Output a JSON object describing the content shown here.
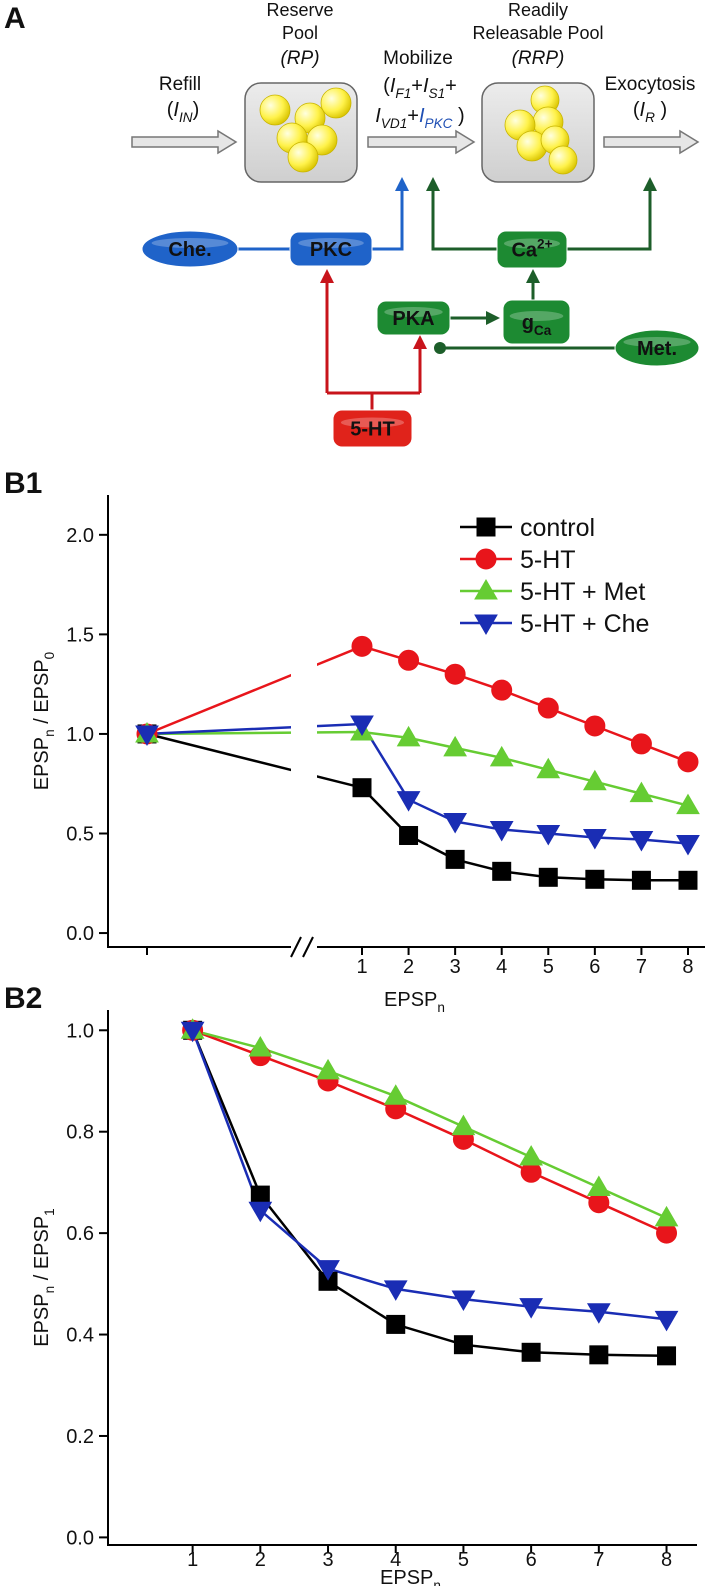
{
  "diagram": {
    "panel_label": "A",
    "refill": {
      "label": "Refill",
      "rate": [
        {
          "text": "("
        },
        {
          "text": "I",
          "italic": true
        },
        {
          "text": "IN",
          "sub": true,
          "italic": true
        },
        {
          "text": ")"
        }
      ]
    },
    "reserve_pool": {
      "label": [
        "Reserve",
        "Pool"
      ],
      "abbr": "(RP)"
    },
    "mobilize": {
      "label": "Mobilize",
      "rate": [
        [
          {
            "text": "("
          },
          {
            "text": "I",
            "italic": true
          },
          {
            "text": "F1",
            "sub": true,
            "italic": true
          },
          {
            "text": "+"
          },
          {
            "text": "I",
            "italic": true
          },
          {
            "text": "S1",
            "sub": true,
            "italic": true
          },
          {
            "text": "+"
          }
        ],
        [
          {
            "text": "I",
            "italic": true
          },
          {
            "text": "VD1",
            "sub": true,
            "italic": true
          },
          {
            "text": "+"
          },
          {
            "text": "I",
            "italic": true,
            "color": "#1f4fb4"
          },
          {
            "text": "PKC",
            "sub": true,
            "italic": true,
            "color": "#1f4fb4"
          },
          {
            "text": " )"
          }
        ]
      ]
    },
    "readily_releasable_pool": {
      "label": [
        "Readily",
        "Releasable Pool"
      ],
      "abbr": "(RRP)"
    },
    "exocytosis": {
      "label": "Exocytosis",
      "rate": [
        {
          "text": "("
        },
        {
          "text": "I",
          "italic": true
        },
        {
          "text": "R",
          "sub": true,
          "italic": true
        },
        {
          "text": " )"
        }
      ]
    },
    "nodes": {
      "che": {
        "label": [
          {
            "text": "Che."
          }
        ],
        "color": "#1f63c9"
      },
      "pkc": {
        "label": [
          {
            "text": "PKC"
          }
        ],
        "color": "#1f63c9"
      },
      "ca": {
        "label": [
          {
            "text": "Ca"
          },
          {
            "text": "2+",
            "sup": true
          }
        ],
        "color": "#1d8a32"
      },
      "pka": {
        "label": [
          {
            "text": "PKA"
          }
        ],
        "color": "#1d8a32"
      },
      "gca": {
        "label": [
          {
            "text": "g"
          },
          {
            "text": "Ca",
            "sub": true
          }
        ],
        "color": "#1d8a32"
      },
      "met": {
        "label": [
          {
            "text": "Met."
          }
        ],
        "color": "#1d8a32"
      },
      "ht": {
        "label": [
          {
            "text": "5-HT"
          }
        ],
        "color": "#e0231b"
      }
    }
  },
  "chart_data": [
    {
      "type": "line",
      "panel_label": "B1",
      "x_label": [
        {
          "text": "EPSP"
        },
        {
          "text": "n",
          "sub": true
        }
      ],
      "y_label": [
        {
          "text": "EPSP"
        },
        {
          "text": "n",
          "sub": true
        },
        {
          "text": " / EPSP"
        },
        {
          "text": "0",
          "sub": true
        }
      ],
      "categories": [
        null,
        "1",
        "2",
        "3",
        "4",
        "5",
        "6",
        "7",
        "8"
      ],
      "x_break": true,
      "ylim": [
        -0.07,
        2.2
      ],
      "yticks": [
        {
          "value": 0,
          "label": "0.0"
        },
        0.5,
        {
          "value": 1,
          "label": "1.0"
        },
        1.5,
        {
          "value": 2,
          "label": "2.0"
        }
      ],
      "legend": "upper right",
      "series": [
        {
          "name": "control",
          "color": "#000000",
          "marker": "square",
          "values": [
            1.0,
            0.73,
            0.49,
            0.37,
            0.31,
            0.28,
            0.27,
            0.265,
            0.265
          ]
        },
        {
          "name": "5-HT",
          "color": "#e8151b",
          "marker": "circle",
          "values": [
            1.0,
            1.44,
            1.37,
            1.3,
            1.22,
            1.13,
            1.04,
            0.95,
            0.86
          ]
        },
        {
          "name": "5-HT + Met",
          "color": "#66cc33",
          "marker": "triangle-up",
          "values": [
            1.0,
            1.01,
            0.98,
            0.93,
            0.88,
            0.82,
            0.76,
            0.7,
            0.64
          ]
        },
        {
          "name": "5-HT + Che",
          "color": "#1a2db4",
          "marker": "triangle-down",
          "values": [
            1.0,
            1.05,
            0.67,
            0.56,
            0.52,
            0.5,
            0.48,
            0.47,
            0.45
          ]
        }
      ]
    },
    {
      "type": "line",
      "panel_label": "B2",
      "x_label": [
        {
          "text": "EPSP"
        },
        {
          "text": "n",
          "sub": true
        }
      ],
      "y_label": [
        {
          "text": "EPSP"
        },
        {
          "text": "n",
          "sub": true
        },
        {
          "text": " / EPSP"
        },
        {
          "text": "1",
          "sub": true
        }
      ],
      "x": [
        1,
        2,
        3,
        4,
        5,
        6,
        7,
        8
      ],
      "xlim": [
        -0.25,
        8.45
      ],
      "xticks": [
        1,
        2,
        3,
        4,
        5,
        6,
        7,
        8
      ],
      "ylim": [
        -0.015,
        1.04
      ],
      "yticks": [
        {
          "value": 0,
          "label": "0.0"
        },
        0.2,
        0.4,
        0.6,
        0.8,
        {
          "value": 1,
          "label": "1.0"
        }
      ],
      "series": [
        {
          "name": "control",
          "color": "#000000",
          "marker": "square",
          "values": [
            1.0,
            0.675,
            0.505,
            0.42,
            0.38,
            0.365,
            0.36,
            0.358
          ]
        },
        {
          "name": "5-HT",
          "color": "#e8151b",
          "marker": "circle",
          "values": [
            1.0,
            0.95,
            0.9,
            0.845,
            0.785,
            0.72,
            0.66,
            0.6
          ]
        },
        {
          "name": "5-HT + Met",
          "color": "#66cc33",
          "marker": "triangle-up",
          "values": [
            1.0,
            0.965,
            0.92,
            0.87,
            0.81,
            0.75,
            0.69,
            0.63
          ]
        },
        {
          "name": "5-HT + Che",
          "color": "#1a2db4",
          "marker": "triangle-down",
          "values": [
            1.0,
            0.645,
            0.53,
            0.49,
            0.47,
            0.455,
            0.445,
            0.43
          ]
        }
      ]
    }
  ]
}
